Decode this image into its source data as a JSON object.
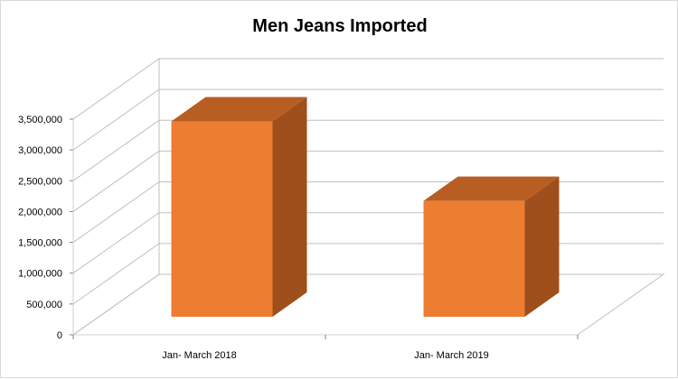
{
  "chart_data": {
    "type": "bar",
    "style": "3d-column",
    "title": "Men Jeans Imported",
    "categories": [
      "Jan- March 2018",
      "Jan- March 2019"
    ],
    "values": [
      3170000,
      1880000
    ],
    "ylim": [
      0,
      3500000
    ],
    "yticks": [
      "0",
      "500,000",
      "1,000,000",
      "1,500,000",
      "2,000,000",
      "2,500,000",
      "3,000,000",
      "3,500,000"
    ],
    "grid": true,
    "legend": "none",
    "colors": {
      "front": "#ED7D31",
      "top": "#B85E23",
      "side": "#9E4F1C",
      "grid": "#bfbfbf"
    }
  }
}
